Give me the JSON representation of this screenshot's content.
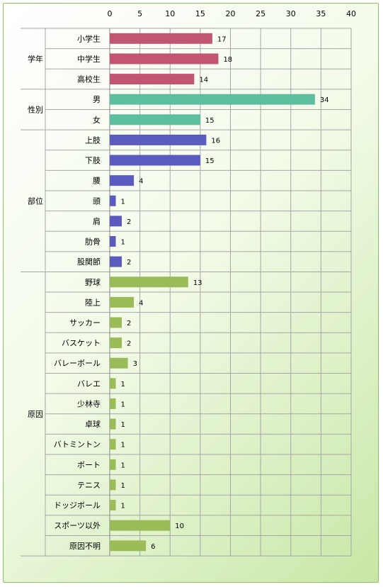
{
  "chart_data": {
    "type": "bar",
    "orientation": "horizontal",
    "title": "",
    "xlabel": "",
    "ylabel": "",
    "xlim": [
      0,
      40
    ],
    "x_ticks": [
      0,
      5,
      10,
      15,
      20,
      25,
      30,
      35,
      40
    ],
    "x_axis_position": "top",
    "grid": true,
    "legend": "none",
    "groups": [
      {
        "name": "学年",
        "color": "#c0566f",
        "items": [
          {
            "label": "小学生",
            "value": 17
          },
          {
            "label": "中学生",
            "value": 18
          },
          {
            "label": "高校生",
            "value": 14
          }
        ]
      },
      {
        "name": "性別",
        "color": "#5bbf9f",
        "items": [
          {
            "label": "男",
            "value": 34
          },
          {
            "label": "女",
            "value": 15
          }
        ]
      },
      {
        "name": "部位",
        "color": "#5b5bbf",
        "items": [
          {
            "label": "上肢",
            "value": 16
          },
          {
            "label": "下肢",
            "value": 15
          },
          {
            "label": "腰",
            "value": 4
          },
          {
            "label": "頭",
            "value": 1
          },
          {
            "label": "肩",
            "value": 2
          },
          {
            "label": "肋骨",
            "value": 1
          },
          {
            "label": "股関節",
            "value": 2
          }
        ]
      },
      {
        "name": "原因",
        "color": "#9bbb59",
        "items": [
          {
            "label": "野球",
            "value": 13
          },
          {
            "label": "陸上",
            "value": 4
          },
          {
            "label": "サッカー",
            "value": 2
          },
          {
            "label": "バスケット",
            "value": 2
          },
          {
            "label": "バレーボール",
            "value": 3
          },
          {
            "label": "バレエ",
            "value": 1
          },
          {
            "label": "少林寺",
            "value": 1
          },
          {
            "label": "卓球",
            "value": 1
          },
          {
            "label": "バトミントン",
            "value": 1
          },
          {
            "label": "ボート",
            "value": 1
          },
          {
            "label": "テニス",
            "value": 1
          },
          {
            "label": "ドッジボール",
            "value": 1
          },
          {
            "label": "スポーツ以外",
            "value": 10
          },
          {
            "label": "原因不明",
            "value": 6
          }
        ]
      }
    ]
  }
}
